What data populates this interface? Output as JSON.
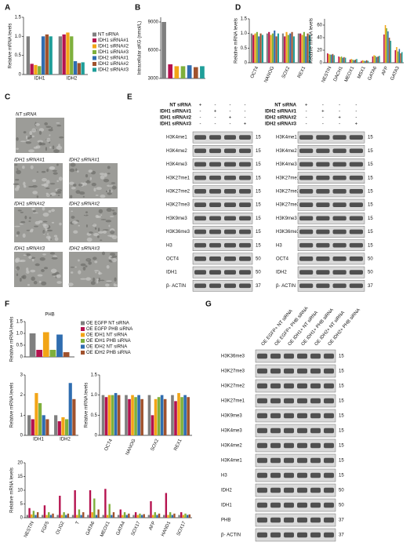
{
  "panel_letters": [
    "A",
    "B",
    "C",
    "D",
    "E",
    "F",
    "G"
  ],
  "chart_data": [
    {
      "type": "bar",
      "y_label": "Relative mRNA levels",
      "categories": [
        "IDH1",
        "IDH2"
      ],
      "ylim": [
        0,
        1.5
      ],
      "yticks": [
        0,
        0.5,
        {
          "value": 1,
          "label": "1.0"
        },
        1.5
      ],
      "series": [
        {
          "name": "NT siRNA",
          "color": "#7f7f7f",
          "values": [
            1.0,
            1.0
          ]
        },
        {
          "name": "IDH1 siRNA#1",
          "color": "#b5124f",
          "values": [
            0.28,
            1.05
          ]
        },
        {
          "name": "IDH1 siRNA#2",
          "color": "#f2a516",
          "values": [
            0.25,
            1.1
          ]
        },
        {
          "name": "IDH1 siRNA#3",
          "color": "#7fb03c",
          "values": [
            0.22,
            1.0
          ]
        },
        {
          "name": "IDH2 siRNA#1",
          "color": "#2f6db0",
          "values": [
            1.0,
            0.35
          ]
        },
        {
          "name": "IDH2 siRNA#2",
          "color": "#a0522d",
          "values": [
            1.05,
            0.3
          ]
        },
        {
          "name": "IDH2 siRNA#3",
          "color": "#1f9e99",
          "values": [
            1.0,
            0.32
          ]
        }
      ]
    },
    {
      "type": "bar",
      "y_label": "Intracellular αKG (nmol/L)",
      "ylim": [
        3000,
        9500
      ],
      "yticks": [
        3000,
        6000,
        9000
      ],
      "values": [
        9000,
        4500,
        4300,
        4300,
        4400,
        4200,
        4300
      ],
      "colors": [
        "#7f7f7f",
        "#b5124f",
        "#f2a516",
        "#7fb03c",
        "#2f6db0",
        "#a0522d",
        "#1f9e99"
      ]
    },
    {
      "type": "bar",
      "y_label": "Relative mRNA levels",
      "categories": [
        "OCT4",
        "NANOG",
        "SOX2",
        "REX1"
      ],
      "ylim": [
        0,
        1.5
      ],
      "yticks": [
        0,
        0.5,
        {
          "value": 1,
          "label": "1.0"
        },
        1.5
      ],
      "series": [
        {
          "color": "#7f7f7f",
          "values": [
            1.0,
            1.0,
            1.0,
            1.0
          ]
        },
        {
          "color": "#b5124f",
          "values": [
            0.95,
            1.05,
            0.9,
            1.0
          ]
        },
        {
          "color": "#f2a516",
          "values": [
            1.0,
            0.95,
            1.05,
            0.95
          ]
        },
        {
          "color": "#7fb03c",
          "values": [
            1.05,
            1.0,
            0.95,
            1.05
          ]
        },
        {
          "color": "#2f6db0",
          "values": [
            0.9,
            1.1,
            1.0,
            0.9
          ]
        },
        {
          "color": "#a0522d",
          "values": [
            1.0,
            0.9,
            1.05,
            1.0
          ]
        },
        {
          "color": "#1f9e99",
          "values": [
            0.95,
            1.0,
            0.9,
            0.95
          ]
        }
      ]
    },
    {
      "type": "bar",
      "y_label": "Relative mRNA levels",
      "categories": [
        "NESTIN",
        "DACH1",
        "MEOX1",
        "MSX1",
        "GATA6",
        "AFP",
        "GATA3"
      ],
      "ylim": [
        0,
        70
      ],
      "yticks": [
        0,
        20,
        40,
        60
      ],
      "series": [
        {
          "color": "#7f7f7f",
          "values": [
            1,
            1,
            1,
            1,
            1,
            1,
            1
          ]
        },
        {
          "color": "#b5124f",
          "values": [
            15,
            10,
            5,
            3,
            10,
            45,
            20
          ]
        },
        {
          "color": "#f2a516",
          "values": [
            14,
            9,
            6,
            4,
            12,
            60,
            25
          ]
        },
        {
          "color": "#7fb03c",
          "values": [
            13,
            10,
            5,
            3,
            11,
            55,
            18
          ]
        },
        {
          "color": "#2f6db0",
          "values": [
            13,
            8,
            4,
            3,
            9,
            50,
            22
          ]
        },
        {
          "color": "#a0522d",
          "values": [
            14,
            9,
            5,
            4,
            10,
            40,
            15
          ]
        },
        {
          "color": "#1f9e99",
          "values": [
            12,
            8,
            6,
            3,
            11,
            35,
            17
          ]
        }
      ]
    },
    {
      "type": "bar",
      "title": "PHB",
      "y_label": "Relative mRNA levels",
      "ylim": [
        0,
        1.5
      ],
      "yticks": [
        0,
        0.5,
        {
          "value": 1,
          "label": "1.0"
        },
        1.5
      ],
      "series": [
        {
          "name": "OE EGFP NT siRNA",
          "color": "#7f7f7f",
          "values": [
            1.0
          ]
        },
        {
          "name": "OE EGFP PHB siRNA",
          "color": "#b5124f",
          "values": [
            0.3
          ]
        },
        {
          "name": "OE IDH1 NT siRNA",
          "color": "#f2a516",
          "values": [
            1.05
          ]
        },
        {
          "name": "OE IDH1 PHB siRNA",
          "color": "#7fb03c",
          "values": [
            0.3
          ]
        },
        {
          "name": "OE IDH2 NT siRNA",
          "color": "#2f6db0",
          "values": [
            0.95
          ]
        },
        {
          "name": "OE IDH2 PHB siRNA",
          "color": "#a0522d",
          "values": [
            0.2
          ]
        }
      ]
    },
    {
      "type": "bar",
      "y_label": "Relative mRNA levels",
      "categories": [
        "IDH1",
        "IDH2"
      ],
      "ylim": [
        0,
        3
      ],
      "yticks": [
        0,
        1,
        2,
        3
      ],
      "series": [
        {
          "color": "#7f7f7f",
          "values": [
            1.0,
            1.0
          ]
        },
        {
          "color": "#b5124f",
          "values": [
            0.8,
            0.7
          ]
        },
        {
          "color": "#f2a516",
          "values": [
            2.1,
            0.9
          ]
        },
        {
          "color": "#7fb03c",
          "values": [
            1.6,
            0.8
          ]
        },
        {
          "color": "#2f6db0",
          "values": [
            1.0,
            2.6
          ]
        },
        {
          "color": "#a0522d",
          "values": [
            0.8,
            1.8
          ]
        }
      ]
    },
    {
      "type": "bar",
      "y_label": "Relative mRNA levels",
      "categories": [
        "OCT4",
        "NANOG",
        "SOX2",
        "REX1"
      ],
      "ylim": [
        0,
        1.5
      ],
      "yticks": [
        0,
        0.5,
        {
          "value": 1,
          "label": "1.0"
        },
        1.5
      ],
      "series": [
        {
          "color": "#7f7f7f",
          "values": [
            1.0,
            1.0,
            1.0,
            1.0
          ]
        },
        {
          "color": "#b5124f",
          "values": [
            0.95,
            0.9,
            0.5,
            0.85
          ]
        },
        {
          "color": "#f2a516",
          "values": [
            1.0,
            1.0,
            0.9,
            1.05
          ]
        },
        {
          "color": "#7fb03c",
          "values": [
            1.0,
            0.95,
            0.95,
            0.95
          ]
        },
        {
          "color": "#2f6db0",
          "values": [
            1.05,
            1.0,
            1.0,
            1.0
          ]
        },
        {
          "color": "#a0522d",
          "values": [
            1.0,
            0.9,
            0.9,
            0.95
          ]
        }
      ]
    },
    {
      "type": "bar",
      "y_label": "Relative mRNA levels",
      "categories": [
        "NESTIN",
        "FGF5",
        "OLIG2",
        "T",
        "GATA6",
        "MEOX1",
        "GATA4",
        "SOX17",
        "AFP",
        "HAND1",
        "SOX17"
      ],
      "ylim": [
        0,
        20
      ],
      "yticks": [
        0,
        5,
        10,
        15,
        20
      ],
      "series": [
        {
          "color": "#7f7f7f",
          "values": [
            1,
            1,
            1,
            1,
            1,
            1,
            1,
            1,
            1,
            1,
            1
          ]
        },
        {
          "color": "#b5124f",
          "values": [
            3.5,
            4.5,
            8,
            10,
            10,
            10.5,
            3,
            2,
            6,
            9,
            2
          ]
        },
        {
          "color": "#f2a516",
          "values": [
            1.2,
            1,
            1,
            1,
            2,
            1,
            1,
            1,
            1,
            1,
            1
          ]
        },
        {
          "color": "#7fb03c",
          "values": [
            2.5,
            2,
            2,
            3,
            7,
            5,
            2,
            1.5,
            2,
            2,
            1.5
          ]
        },
        {
          "color": "#2f6db0",
          "values": [
            1,
            1,
            1,
            1,
            1,
            1,
            1,
            1,
            1,
            1,
            1
          ]
        },
        {
          "color": "#a0522d",
          "values": [
            2,
            1.5,
            1.5,
            2,
            3,
            2,
            1.5,
            1.3,
            1.5,
            1.5,
            1.2
          ]
        }
      ]
    }
  ],
  "micrographs": [
    "NT siRNA",
    "IDH1 siRNA#1",
    "IDH2 siRNA#1",
    "IDH1 siRNA#2",
    "IDH2 siRNA#2",
    "IDH1 siRNA#3",
    "IDH2 siRNA#3"
  ],
  "blots": [
    {
      "conditions": [
        {
          "label": "NT siRNA",
          "marks": [
            "+",
            "-",
            "-",
            "-"
          ]
        },
        {
          "label": "IDH1 siRNA#1",
          "marks": [
            "-",
            "+",
            "-",
            "-"
          ]
        },
        {
          "label": "IDH1 siRNA#2",
          "marks": [
            "-",
            "-",
            "+",
            "-"
          ]
        },
        {
          "label": "IDH1 siRNA#3",
          "marks": [
            "-",
            "-",
            "-",
            "+"
          ]
        }
      ],
      "rows": [
        {
          "label": "H3K4me1",
          "marker": "15"
        },
        {
          "label": "H3K4me2",
          "marker": "15"
        },
        {
          "label": "H3K4me3",
          "marker": "15"
        },
        {
          "label": "H3K27me1",
          "marker": "15"
        },
        {
          "label": "H3K27me2",
          "marker": "15"
        },
        {
          "label": "H3K27me3",
          "marker": "15"
        },
        {
          "label": "H3K9me3",
          "marker": "15"
        },
        {
          "label": "H3K36me3",
          "marker": "15"
        },
        {
          "label": "H3",
          "marker": "15"
        },
        {
          "label": "OCT4",
          "marker": "50"
        },
        {
          "label": "IDH1",
          "marker": "50"
        },
        {
          "label": "β- ACTIN",
          "marker": "37"
        }
      ]
    },
    {
      "conditions": [
        {
          "label": "NT siRNA",
          "marks": [
            "+",
            "-",
            "-",
            "-"
          ]
        },
        {
          "label": "IDH2 siRNA#1",
          "marks": [
            "-",
            "+",
            "-",
            "-"
          ]
        },
        {
          "label": "IDH2 siRNA#2",
          "marks": [
            "-",
            "-",
            "+",
            "-"
          ]
        },
        {
          "label": "IDH2 siRNA#3",
          "marks": [
            "-",
            "-",
            "-",
            "+"
          ]
        }
      ],
      "rows": [
        {
          "label": "H3K4me1",
          "marker": "15"
        },
        {
          "label": "H3K4me2",
          "marker": "15"
        },
        {
          "label": "H3K4me3",
          "marker": "15"
        },
        {
          "label": "H3K27me1",
          "marker": "15"
        },
        {
          "label": "H3K27me2",
          "marker": "15"
        },
        {
          "label": "H3K27me3",
          "marker": "15"
        },
        {
          "label": "H3K9me3",
          "marker": "15"
        },
        {
          "label": "H3K36me3",
          "marker": "15"
        },
        {
          "label": "H3",
          "marker": "15"
        },
        {
          "label": "OCT4",
          "marker": "50"
        },
        {
          "label": "IDH2",
          "marker": "50"
        },
        {
          "label": "β- ACTIN",
          "marker": "37"
        }
      ]
    },
    {
      "conditions": [
        {
          "label": "OE EGFP+ NT siRNA"
        },
        {
          "label": "OE EGFP+ PHB siRNA"
        },
        {
          "label": "OE IDH1+ NT siRNA"
        },
        {
          "label": "OE IDH1+ PHB siRNA"
        },
        {
          "label": "OE IDH2+ NT siRNA"
        },
        {
          "label": "OE IDH2+ PHB siRNA"
        }
      ],
      "rows": [
        {
          "label": "H3K36me3",
          "marker": "15"
        },
        {
          "label": "H3K27me3",
          "marker": "15"
        },
        {
          "label": "H3K27me2",
          "marker": "15"
        },
        {
          "label": "H3K27me1",
          "marker": "15"
        },
        {
          "label": "H3K9me3",
          "marker": "15"
        },
        {
          "label": "H3K4me3",
          "marker": "15"
        },
        {
          "label": "H3K4me2",
          "marker": "15"
        },
        {
          "label": "H3K4me1",
          "marker": "15"
        },
        {
          "label": "H3",
          "marker": "15"
        },
        {
          "label": "IDH2",
          "marker": "50"
        },
        {
          "label": "IDH1",
          "marker": "50"
        },
        {
          "label": "PHB",
          "marker": "37"
        },
        {
          "label": "β- ACTIN",
          "marker": "37"
        }
      ]
    }
  ]
}
